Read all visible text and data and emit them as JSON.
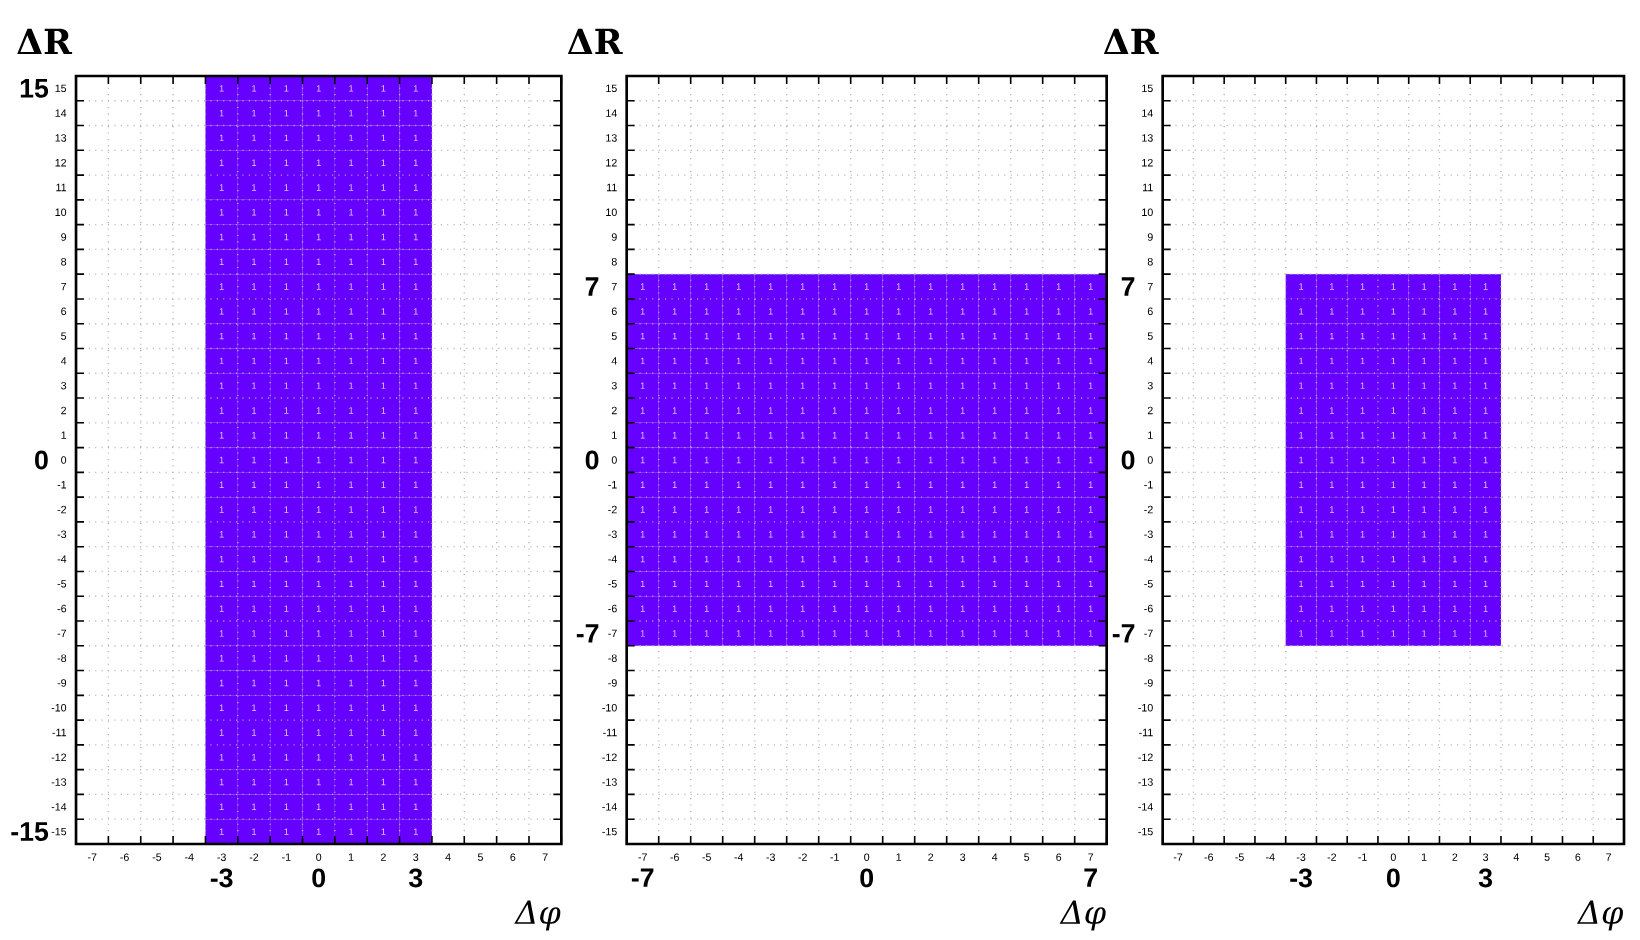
{
  "chart_data": [
    {
      "type": "heatmap",
      "xlabel": "Δφ",
      "ylabel": "ΔR",
      "color": "#6600ff",
      "grid": true,
      "data_labels": true,
      "categories": [
        "-7",
        "-6",
        "-5",
        "-4",
        "-3",
        "-2",
        "-1",
        "0",
        "1",
        "2",
        "3",
        "4",
        "5",
        "6",
        "7"
      ],
      "y_categories": [
        "15",
        "14",
        "13",
        "12",
        "11",
        "10",
        "9",
        "8",
        "7",
        "6",
        "5",
        "4",
        "3",
        "2",
        "1",
        "0",
        "-1",
        "-2",
        "-3",
        "-4",
        "-5",
        "-6",
        "-7",
        "-8",
        "-9",
        "-10",
        "-11",
        "-12",
        "-13",
        "-14",
        "-15"
      ],
      "annotations": [
        "-3",
        "0",
        "3",
        "15",
        "0",
        "-15"
      ],
      "cells": [
        [
          null,
          null,
          null,
          null,
          1,
          1,
          1,
          1,
          1,
          1,
          1,
          null,
          null,
          null,
          null
        ],
        [
          null,
          null,
          null,
          null,
          1,
          1,
          1,
          1,
          1,
          1,
          1,
          null,
          null,
          null,
          null
        ],
        [
          null,
          null,
          null,
          null,
          1,
          1,
          1,
          1,
          1,
          1,
          1,
          null,
          null,
          null,
          null
        ],
        [
          null,
          null,
          null,
          null,
          1,
          1,
          1,
          1,
          1,
          1,
          1,
          null,
          null,
          null,
          null
        ],
        [
          null,
          null,
          null,
          null,
          1,
          1,
          1,
          1,
          1,
          1,
          1,
          null,
          null,
          null,
          null
        ],
        [
          null,
          null,
          null,
          null,
          1,
          1,
          1,
          1,
          1,
          1,
          1,
          null,
          null,
          null,
          null
        ],
        [
          null,
          null,
          null,
          null,
          1,
          1,
          1,
          1,
          1,
          1,
          1,
          null,
          null,
          null,
          null
        ],
        [
          null,
          null,
          null,
          null,
          1,
          1,
          1,
          1,
          1,
          1,
          1,
          null,
          null,
          null,
          null
        ],
        [
          null,
          null,
          null,
          null,
          1,
          1,
          1,
          1,
          1,
          1,
          1,
          null,
          null,
          null,
          null
        ],
        [
          null,
          null,
          null,
          null,
          1,
          1,
          1,
          1,
          1,
          1,
          1,
          null,
          null,
          null,
          null
        ],
        [
          null,
          null,
          null,
          null,
          1,
          1,
          1,
          1,
          1,
          1,
          1,
          null,
          null,
          null,
          null
        ],
        [
          null,
          null,
          null,
          null,
          1,
          1,
          1,
          1,
          1,
          1,
          1,
          null,
          null,
          null,
          null
        ],
        [
          null,
          null,
          null,
          null,
          1,
          1,
          1,
          1,
          1,
          1,
          1,
          null,
          null,
          null,
          null
        ],
        [
          null,
          null,
          null,
          null,
          1,
          1,
          1,
          1,
          1,
          1,
          1,
          null,
          null,
          null,
          null
        ],
        [
          null,
          null,
          null,
          null,
          1,
          1,
          1,
          1,
          1,
          1,
          1,
          null,
          null,
          null,
          null
        ],
        [
          null,
          null,
          null,
          null,
          1,
          1,
          1,
          1,
          1,
          1,
          1,
          null,
          null,
          null,
          null
        ],
        [
          null,
          null,
          null,
          null,
          1,
          1,
          1,
          1,
          1,
          1,
          1,
          null,
          null,
          null,
          null
        ],
        [
          null,
          null,
          null,
          null,
          1,
          1,
          1,
          1,
          1,
          1,
          1,
          null,
          null,
          null,
          null
        ],
        [
          null,
          null,
          null,
          null,
          1,
          1,
          1,
          1,
          1,
          1,
          1,
          null,
          null,
          null,
          null
        ],
        [
          null,
          null,
          null,
          null,
          1,
          1,
          1,
          1,
          1,
          1,
          1,
          null,
          null,
          null,
          null
        ],
        [
          null,
          null,
          null,
          null,
          1,
          1,
          1,
          1,
          1,
          1,
          1,
          null,
          null,
          null,
          null
        ],
        [
          null,
          null,
          null,
          null,
          1,
          1,
          1,
          1,
          1,
          1,
          1,
          null,
          null,
          null,
          null
        ],
        [
          null,
          null,
          null,
          null,
          1,
          1,
          1,
          1,
          1,
          1,
          1,
          null,
          null,
          null,
          null
        ],
        [
          null,
          null,
          null,
          null,
          1,
          1,
          1,
          1,
          1,
          1,
          1,
          null,
          null,
          null,
          null
        ],
        [
          null,
          null,
          null,
          null,
          1,
          1,
          1,
          1,
          1,
          1,
          1,
          null,
          null,
          null,
          null
        ],
        [
          null,
          null,
          null,
          null,
          1,
          1,
          1,
          1,
          1,
          1,
          1,
          null,
          null,
          null,
          null
        ],
        [
          null,
          null,
          null,
          null,
          1,
          1,
          1,
          1,
          1,
          1,
          1,
          null,
          null,
          null,
          null
        ],
        [
          null,
          null,
          null,
          null,
          1,
          1,
          1,
          1,
          1,
          1,
          1,
          null,
          null,
          null,
          null
        ],
        [
          null,
          null,
          null,
          null,
          1,
          1,
          1,
          1,
          1,
          1,
          1,
          null,
          null,
          null,
          null
        ],
        [
          null,
          null,
          null,
          null,
          1,
          1,
          1,
          1,
          1,
          1,
          1,
          null,
          null,
          null,
          null
        ],
        [
          null,
          null,
          null,
          null,
          1,
          1,
          1,
          1,
          1,
          1,
          1,
          null,
          null,
          null,
          null
        ]
      ]
    },
    {
      "type": "heatmap",
      "xlabel": "Δφ",
      "ylabel": "ΔR",
      "color": "#6600ff",
      "grid": true,
      "data_labels": true,
      "categories": [
        "-7",
        "-6",
        "-5",
        "-4",
        "-3",
        "-2",
        "-1",
        "0",
        "1",
        "2",
        "3",
        "4",
        "5",
        "6",
        "7"
      ],
      "y_categories": [
        "15",
        "14",
        "13",
        "12",
        "11",
        "10",
        "9",
        "8",
        "7",
        "6",
        "5",
        "4",
        "3",
        "2",
        "1",
        "0",
        "-1",
        "-2",
        "-3",
        "-4",
        "-5",
        "-6",
        "-7",
        "-8",
        "-9",
        "-10",
        "-11",
        "-12",
        "-13",
        "-14",
        "-15"
      ],
      "annotations": [
        "-7",
        "0",
        "7",
        "7",
        "0",
        "-7"
      ],
      "cells": [
        [
          null,
          null,
          null,
          null,
          null,
          null,
          null,
          null,
          null,
          null,
          null,
          null,
          null,
          null,
          null
        ],
        [
          null,
          null,
          null,
          null,
          null,
          null,
          null,
          null,
          null,
          null,
          null,
          null,
          null,
          null,
          null
        ],
        [
          null,
          null,
          null,
          null,
          null,
          null,
          null,
          null,
          null,
          null,
          null,
          null,
          null,
          null,
          null
        ],
        [
          null,
          null,
          null,
          null,
          null,
          null,
          null,
          null,
          null,
          null,
          null,
          null,
          null,
          null,
          null
        ],
        [
          null,
          null,
          null,
          null,
          null,
          null,
          null,
          null,
          null,
          null,
          null,
          null,
          null,
          null,
          null
        ],
        [
          null,
          null,
          null,
          null,
          null,
          null,
          null,
          null,
          null,
          null,
          null,
          null,
          null,
          null,
          null
        ],
        [
          null,
          null,
          null,
          null,
          null,
          null,
          null,
          null,
          null,
          null,
          null,
          null,
          null,
          null,
          null
        ],
        [
          null,
          null,
          null,
          null,
          null,
          null,
          null,
          null,
          null,
          null,
          null,
          null,
          null,
          null,
          null
        ],
        [
          1,
          1,
          1,
          1,
          1,
          1,
          1,
          1,
          1,
          1,
          1,
          1,
          1,
          1,
          1
        ],
        [
          1,
          1,
          1,
          1,
          1,
          1,
          1,
          1,
          1,
          1,
          1,
          1,
          1,
          1,
          1
        ],
        [
          1,
          1,
          1,
          1,
          1,
          1,
          1,
          1,
          1,
          1,
          1,
          1,
          1,
          1,
          1
        ],
        [
          1,
          1,
          1,
          1,
          1,
          1,
          1,
          1,
          1,
          1,
          1,
          1,
          1,
          1,
          1
        ],
        [
          1,
          1,
          1,
          1,
          1,
          1,
          1,
          1,
          1,
          1,
          1,
          1,
          1,
          1,
          1
        ],
        [
          1,
          1,
          1,
          1,
          1,
          1,
          1,
          1,
          1,
          1,
          1,
          1,
          1,
          1,
          1
        ],
        [
          1,
          1,
          1,
          1,
          1,
          1,
          1,
          1,
          1,
          1,
          1,
          1,
          1,
          1,
          1
        ],
        [
          1,
          1,
          1,
          1,
          1,
          1,
          1,
          1,
          1,
          1,
          1,
          1,
          1,
          1,
          1
        ],
        [
          1,
          1,
          1,
          1,
          1,
          1,
          1,
          1,
          1,
          1,
          1,
          1,
          1,
          1,
          1
        ],
        [
          1,
          1,
          1,
          1,
          1,
          1,
          1,
          1,
          1,
          1,
          1,
          1,
          1,
          1,
          1
        ],
        [
          1,
          1,
          1,
          1,
          1,
          1,
          1,
          1,
          1,
          1,
          1,
          1,
          1,
          1,
          1
        ],
        [
          1,
          1,
          1,
          1,
          1,
          1,
          1,
          1,
          1,
          1,
          1,
          1,
          1,
          1,
          1
        ],
        [
          1,
          1,
          1,
          1,
          1,
          1,
          1,
          1,
          1,
          1,
          1,
          1,
          1,
          1,
          1
        ],
        [
          1,
          1,
          1,
          1,
          1,
          1,
          1,
          1,
          1,
          1,
          1,
          1,
          1,
          1,
          1
        ],
        [
          1,
          1,
          1,
          1,
          1,
          1,
          1,
          1,
          1,
          1,
          1,
          1,
          1,
          1,
          1
        ],
        [
          null,
          null,
          null,
          null,
          null,
          null,
          null,
          null,
          null,
          null,
          null,
          null,
          null,
          null,
          null
        ],
        [
          null,
          null,
          null,
          null,
          null,
          null,
          null,
          null,
          null,
          null,
          null,
          null,
          null,
          null,
          null
        ],
        [
          null,
          null,
          null,
          null,
          null,
          null,
          null,
          null,
          null,
          null,
          null,
          null,
          null,
          null,
          null
        ],
        [
          null,
          null,
          null,
          null,
          null,
          null,
          null,
          null,
          null,
          null,
          null,
          null,
          null,
          null,
          null
        ],
        [
          null,
          null,
          null,
          null,
          null,
          null,
          null,
          null,
          null,
          null,
          null,
          null,
          null,
          null,
          null
        ],
        [
          null,
          null,
          null,
          null,
          null,
          null,
          null,
          null,
          null,
          null,
          null,
          null,
          null,
          null,
          null
        ],
        [
          null,
          null,
          null,
          null,
          null,
          null,
          null,
          null,
          null,
          null,
          null,
          null,
          null,
          null,
          null
        ],
        [
          null,
          null,
          null,
          null,
          null,
          null,
          null,
          null,
          null,
          null,
          null,
          null,
          null,
          null,
          null
        ]
      ]
    },
    {
      "type": "heatmap",
      "xlabel": "Δφ",
      "ylabel": "ΔR",
      "color": "#6600ff",
      "grid": true,
      "data_labels": true,
      "categories": [
        "-7",
        "-6",
        "-5",
        "-4",
        "-3",
        "-2",
        "-1",
        "0",
        "1",
        "2",
        "3",
        "4",
        "5",
        "6",
        "7"
      ],
      "y_categories": [
        "15",
        "14",
        "13",
        "12",
        "11",
        "10",
        "9",
        "8",
        "7",
        "6",
        "5",
        "4",
        "3",
        "2",
        "1",
        "0",
        "-1",
        "-2",
        "-3",
        "-4",
        "-5",
        "-6",
        "-7",
        "-8",
        "-9",
        "-10",
        "-11",
        "-12",
        "-13",
        "-14",
        "-15"
      ],
      "annotations": [
        "-3",
        "0",
        "3",
        "7",
        "0",
        "-7"
      ],
      "cells": [
        [
          null,
          null,
          null,
          null,
          null,
          null,
          null,
          null,
          null,
          null,
          null,
          null,
          null,
          null,
          null
        ],
        [
          null,
          null,
          null,
          null,
          null,
          null,
          null,
          null,
          null,
          null,
          null,
          null,
          null,
          null,
          null
        ],
        [
          null,
          null,
          null,
          null,
          null,
          null,
          null,
          null,
          null,
          null,
          null,
          null,
          null,
          null,
          null
        ],
        [
          null,
          null,
          null,
          null,
          null,
          null,
          null,
          null,
          null,
          null,
          null,
          null,
          null,
          null,
          null
        ],
        [
          null,
          null,
          null,
          null,
          null,
          null,
          null,
          null,
          null,
          null,
          null,
          null,
          null,
          null,
          null
        ],
        [
          null,
          null,
          null,
          null,
          null,
          null,
          null,
          null,
          null,
          null,
          null,
          null,
          null,
          null,
          null
        ],
        [
          null,
          null,
          null,
          null,
          null,
          null,
          null,
          null,
          null,
          null,
          null,
          null,
          null,
          null,
          null
        ],
        [
          null,
          null,
          null,
          null,
          null,
          null,
          null,
          null,
          null,
          null,
          null,
          null,
          null,
          null,
          null
        ],
        [
          null,
          null,
          null,
          null,
          1,
          1,
          1,
          1,
          1,
          1,
          1,
          null,
          null,
          null,
          null
        ],
        [
          null,
          null,
          null,
          null,
          1,
          1,
          1,
          1,
          1,
          1,
          1,
          null,
          null,
          null,
          null
        ],
        [
          null,
          null,
          null,
          null,
          1,
          1,
          1,
          1,
          1,
          1,
          1,
          null,
          null,
          null,
          null
        ],
        [
          null,
          null,
          null,
          null,
          1,
          1,
          1,
          1,
          1,
          1,
          1,
          null,
          null,
          null,
          null
        ],
        [
          null,
          null,
          null,
          null,
          1,
          1,
          1,
          1,
          1,
          1,
          1,
          null,
          null,
          null,
          null
        ],
        [
          null,
          null,
          null,
          null,
          1,
          1,
          1,
          1,
          1,
          1,
          1,
          null,
          null,
          null,
          null
        ],
        [
          null,
          null,
          null,
          null,
          1,
          1,
          1,
          1,
          1,
          1,
          1,
          null,
          null,
          null,
          null
        ],
        [
          null,
          null,
          null,
          null,
          1,
          1,
          1,
          1,
          1,
          1,
          1,
          null,
          null,
          null,
          null
        ],
        [
          null,
          null,
          null,
          null,
          1,
          1,
          1,
          1,
          1,
          1,
          1,
          null,
          null,
          null,
          null
        ],
        [
          null,
          null,
          null,
          null,
          1,
          1,
          1,
          1,
          1,
          1,
          1,
          null,
          null,
          null,
          null
        ],
        [
          null,
          null,
          null,
          null,
          1,
          1,
          1,
          1,
          1,
          1,
          1,
          null,
          null,
          null,
          null
        ],
        [
          null,
          null,
          null,
          null,
          1,
          1,
          1,
          1,
          1,
          1,
          1,
          null,
          null,
          null,
          null
        ],
        [
          null,
          null,
          null,
          null,
          1,
          1,
          1,
          1,
          1,
          1,
          1,
          null,
          null,
          null,
          null
        ],
        [
          null,
          null,
          null,
          null,
          1,
          1,
          1,
          1,
          1,
          1,
          1,
          null,
          null,
          null,
          null
        ],
        [
          null,
          null,
          null,
          null,
          1,
          1,
          1,
          1,
          1,
          1,
          1,
          null,
          null,
          null,
          null
        ],
        [
          null,
          null,
          null,
          null,
          null,
          null,
          null,
          null,
          null,
          null,
          null,
          null,
          null,
          null,
          null
        ],
        [
          null,
          null,
          null,
          null,
          null,
          null,
          null,
          null,
          null,
          null,
          null,
          null,
          null,
          null,
          null
        ],
        [
          null,
          null,
          null,
          null,
          null,
          null,
          null,
          null,
          null,
          null,
          null,
          null,
          null,
          null,
          null
        ],
        [
          null,
          null,
          null,
          null,
          null,
          null,
          null,
          null,
          null,
          null,
          null,
          null,
          null,
          null,
          null
        ],
        [
          null,
          null,
          null,
          null,
          null,
          null,
          null,
          null,
          null,
          null,
          null,
          null,
          null,
          null,
          null
        ],
        [
          null,
          null,
          null,
          null,
          null,
          null,
          null,
          null,
          null,
          null,
          null,
          null,
          null,
          null,
          null
        ],
        [
          null,
          null,
          null,
          null,
          null,
          null,
          null,
          null,
          null,
          null,
          null,
          null,
          null,
          null,
          null
        ],
        [
          null,
          null,
          null,
          null,
          null,
          null,
          null,
          null,
          null,
          null,
          null,
          null,
          null,
          null,
          null
        ]
      ]
    }
  ]
}
